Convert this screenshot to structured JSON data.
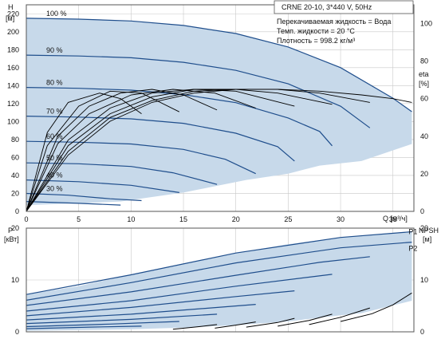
{
  "chart_data": [
    {
      "type": "line",
      "title": "CRNE 20-10, 3*440 V, 50Hz",
      "info_lines": [
        "Перекачиваемая жидкость = Вода",
        "Темп. жидкости = 20 °C",
        "Плотность = 998.2 кг/м³"
      ],
      "left_axis": {
        "label": "H",
        "unit": "[м]",
        "range": [
          0,
          230
        ],
        "ticks": [
          "0",
          "20",
          "40",
          "60",
          "80",
          "100",
          "120",
          "140",
          "160",
          "180",
          "200",
          "220"
        ]
      },
      "right_axis": {
        "label": "eta",
        "unit": "[%]",
        "range": [
          0,
          110
        ],
        "ticks": [
          "0",
          "20",
          "40",
          "60",
          "80",
          "100"
        ]
      },
      "x_axis": {
        "label": "Q [м³/ч]",
        "range": [
          0,
          37
        ],
        "ticks": [
          "0",
          "5",
          "10",
          "15",
          "20",
          "25",
          "30",
          "35"
        ]
      },
      "grid": true,
      "operating_band": {
        "upper": [
          [
            0,
            215
          ],
          [
            5,
            214
          ],
          [
            10,
            212
          ],
          [
            15,
            207
          ],
          [
            20,
            198
          ],
          [
            25,
            183
          ],
          [
            30,
            160
          ],
          [
            35,
            126
          ],
          [
            36.8,
            111
          ]
        ],
        "lower": [
          [
            0,
            7
          ],
          [
            5,
            9
          ],
          [
            9,
            11
          ],
          [
            12,
            16
          ],
          [
            15,
            21
          ],
          [
            18,
            28
          ],
          [
            21,
            35
          ],
          [
            25,
            42
          ],
          [
            28,
            51
          ],
          [
            32,
            56
          ],
          [
            36.8,
            75
          ]
        ]
      },
      "head_series": [
        {
          "name": "100 %",
          "points": [
            [
              0,
              215
            ],
            [
              5,
              214
            ],
            [
              10,
              212
            ],
            [
              15,
              207
            ],
            [
              20,
              198
            ],
            [
              25,
              183
            ],
            [
              30,
              160
            ],
            [
              35,
              126
            ],
            [
              36.8,
              111
            ]
          ]
        },
        {
          "name": "90 %",
          "points": [
            [
              0,
              174
            ],
            [
              5,
              173
            ],
            [
              10,
              171
            ],
            [
              15,
              166
            ],
            [
              20,
              157
            ],
            [
              25,
              142
            ],
            [
              30,
              117
            ],
            [
              32.8,
              93
            ]
          ]
        },
        {
          "name": "80 %",
          "points": [
            [
              0,
              138
            ],
            [
              5,
              137
            ],
            [
              10,
              135
            ],
            [
              15,
              130
            ],
            [
              20,
              121
            ],
            [
              25,
              104
            ],
            [
              28,
              89
            ],
            [
              29.2,
              73
            ]
          ]
        },
        {
          "name": "70 %",
          "points": [
            [
              0,
              106
            ],
            [
              5,
              105
            ],
            [
              10,
              103
            ],
            [
              15,
              98
            ],
            [
              20,
              87
            ],
            [
              24,
              72
            ],
            [
              25.6,
              56
            ]
          ]
        },
        {
          "name": "60 %",
          "points": [
            [
              0,
              78
            ],
            [
              5,
              77
            ],
            [
              10,
              75
            ],
            [
              15,
              69
            ],
            [
              19,
              58
            ],
            [
              21.9,
              42
            ]
          ]
        },
        {
          "name": "50 %",
          "points": [
            [
              0,
              54
            ],
            [
              5,
              53
            ],
            [
              10,
              50
            ],
            [
              14,
              43
            ],
            [
              18.2,
              30
            ]
          ]
        },
        {
          "name": "40 %",
          "points": [
            [
              0,
              35
            ],
            [
              5,
              33
            ],
            [
              10,
              29
            ],
            [
              14.6,
              21
            ]
          ]
        },
        {
          "name": "30 %",
          "points": [
            [
              0,
              20
            ],
            [
              4,
              18
            ],
            [
              8,
              14
            ],
            [
              11,
              12
            ]
          ]
        },
        {
          "name": "",
          "points": [
            [
              0,
              11
            ],
            [
              5,
              9
            ],
            [
              9,
              7
            ]
          ]
        }
      ],
      "efficiency_series": [
        {
          "name": "100 %",
          "points": [
            [
              0,
              0
            ],
            [
              4,
              30
            ],
            [
              8,
              48
            ],
            [
              12,
              58
            ],
            [
              16,
              63
            ],
            [
              20,
              65
            ],
            [
              24,
              65
            ],
            [
              28,
              64
            ],
            [
              32,
              62
            ],
            [
              35,
              60
            ],
            [
              36.8,
              58
            ]
          ]
        },
        {
          "name": "90 %",
          "points": [
            [
              0,
              0
            ],
            [
              4,
              32
            ],
            [
              8,
              50
            ],
            [
              12,
              59
            ],
            [
              16,
              64
            ],
            [
              20,
              65
            ],
            [
              24,
              65
            ],
            [
              28,
              63
            ],
            [
              32.8,
              58
            ]
          ]
        },
        {
          "name": "80 %",
          "points": [
            [
              0,
              0
            ],
            [
              4,
              35
            ],
            [
              8,
              52
            ],
            [
              12,
              61
            ],
            [
              16,
              65
            ],
            [
              20,
              65
            ],
            [
              24,
              63
            ],
            [
              29.2,
              57
            ]
          ]
        },
        {
          "name": "70 %",
          "points": [
            [
              0,
              0
            ],
            [
              4,
              38
            ],
            [
              8,
              55
            ],
            [
              12,
              63
            ],
            [
              16,
              65
            ],
            [
              20,
              64
            ],
            [
              25.6,
              56
            ]
          ]
        },
        {
          "name": "60 %",
          "points": [
            [
              0,
              0
            ],
            [
              3,
              36
            ],
            [
              6,
              52
            ],
            [
              10,
              62
            ],
            [
              14,
              65
            ],
            [
              18,
              63
            ],
            [
              21.9,
              55
            ]
          ]
        },
        {
          "name": "50 %",
          "points": [
            [
              0,
              0
            ],
            [
              3,
              40
            ],
            [
              6,
              56
            ],
            [
              9,
              63
            ],
            [
              12,
              65
            ],
            [
              15,
              62
            ],
            [
              18.2,
              54
            ]
          ]
        },
        {
          "name": "40 %",
          "points": [
            [
              0,
              0
            ],
            [
              2,
              35
            ],
            [
              5,
              56
            ],
            [
              8,
              64
            ],
            [
              11,
              63
            ],
            [
              14.6,
              53
            ]
          ]
        },
        {
          "name": "30 %",
          "points": [
            [
              0,
              0
            ],
            [
              2,
              42
            ],
            [
              4,
              58
            ],
            [
              7,
              63
            ],
            [
              9,
              60
            ],
            [
              11,
              52
            ]
          ]
        }
      ]
    },
    {
      "type": "line",
      "left_axis": {
        "label": "P",
        "unit": "[кВт]",
        "range": [
          0,
          20
        ],
        "ticks": [
          "0",
          "10",
          "20"
        ]
      },
      "right_axis": {
        "label": "NPSH",
        "unit": "[м]",
        "range": [
          0,
          20
        ],
        "ticks": [
          "0",
          "10",
          "20"
        ]
      },
      "x_axis": {
        "range": [
          0,
          37
        ]
      },
      "grid": true,
      "band_labels": [
        "P1",
        "P2"
      ],
      "operating_band": {
        "upper": [
          [
            0,
            7.2
          ],
          [
            5,
            8.8
          ],
          [
            10,
            11.0
          ],
          [
            15,
            13.2
          ],
          [
            20,
            15.2
          ],
          [
            25,
            16.9
          ],
          [
            30,
            18.2
          ],
          [
            35,
            19.1
          ],
          [
            36.8,
            19.3
          ]
        ],
        "lower": [
          [
            0,
            0.2
          ],
          [
            10,
            0.5
          ],
          [
            15,
            0.8
          ],
          [
            20,
            1.3
          ],
          [
            25,
            2.0
          ],
          [
            30,
            3.2
          ],
          [
            32,
            3.6
          ],
          [
            36.8,
            6.0
          ]
        ]
      },
      "power_series": [
        {
          "name": "P1 100 %",
          "points": [
            [
              0,
              7.2
            ],
            [
              10,
              11.0
            ],
            [
              20,
              15.2
            ],
            [
              30,
              18.2
            ],
            [
              36.8,
              19.3
            ]
          ]
        },
        {
          "name": "P2 100 %",
          "points": [
            [
              0,
              6.1
            ],
            [
              10,
              9.5
            ],
            [
              20,
              13.3
            ],
            [
              30,
              16.2
            ],
            [
              36.8,
              17.3
            ]
          ]
        },
        {
          "name": "90 %",
          "points": [
            [
              0,
              5.1
            ],
            [
              10,
              7.7
            ],
            [
              20,
              10.9
            ],
            [
              28,
              13.4
            ],
            [
              32.8,
              14.5
            ]
          ]
        },
        {
          "name": "80 %",
          "points": [
            [
              0,
              4.0
            ],
            [
              10,
              6.0
            ],
            [
              20,
              8.8
            ],
            [
              29.2,
              11.1
            ]
          ]
        },
        {
          "name": "70 %",
          "points": [
            [
              0,
              3.1
            ],
            [
              10,
              4.7
            ],
            [
              20,
              6.8
            ],
            [
              25.6,
              7.9
            ]
          ]
        },
        {
          "name": "60 %",
          "points": [
            [
              0,
              2.3
            ],
            [
              10,
              3.4
            ],
            [
              21.9,
              5.3
            ]
          ]
        },
        {
          "name": "50 %",
          "points": [
            [
              0,
              1.6
            ],
            [
              10,
              2.4
            ],
            [
              18.2,
              3.4
            ]
          ]
        },
        {
          "name": "40 %",
          "points": [
            [
              0,
              1.0
            ],
            [
              8,
              1.5
            ],
            [
              14.6,
              2.0
            ]
          ]
        },
        {
          "name": "30 %",
          "points": [
            [
              0,
              0.6
            ],
            [
              6,
              0.9
            ],
            [
              11,
              1.1
            ]
          ]
        }
      ],
      "npsh_series": [
        {
          "name": "100 %",
          "points": [
            [
              30,
              2.0
            ],
            [
              33,
              3.5
            ],
            [
              35,
              5.2
            ],
            [
              36.8,
              7.5
            ]
          ]
        },
        {
          "name": "90 %",
          "points": [
            [
              27,
              1.4
            ],
            [
              30,
              2.8
            ],
            [
              32.8,
              4.6
            ]
          ]
        },
        {
          "name": "80 %",
          "points": [
            [
              24,
              1.1
            ],
            [
              27,
              2.2
            ],
            [
              29.2,
              3.4
            ]
          ]
        },
        {
          "name": "70 %",
          "points": [
            [
              21,
              0.9
            ],
            [
              24,
              1.8
            ],
            [
              25.6,
              2.6
            ]
          ]
        },
        {
          "name": "60 %",
          "points": [
            [
              18,
              0.7
            ],
            [
              20,
              1.3
            ],
            [
              21.9,
              1.9
            ]
          ]
        },
        {
          "name": "50 %",
          "points": [
            [
              14,
              0.5
            ],
            [
              16.5,
              1.0
            ],
            [
              18.2,
              1.4
            ]
          ]
        }
      ]
    }
  ]
}
